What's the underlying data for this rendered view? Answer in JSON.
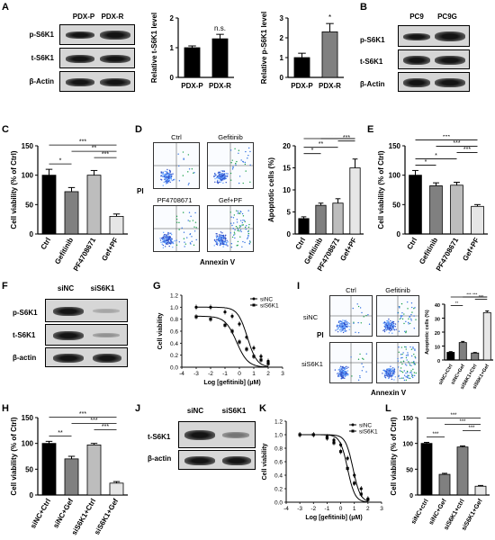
{
  "panel_labels": {
    "A": "A",
    "B": "B",
    "C": "C",
    "D": "D",
    "E": "E",
    "F": "F",
    "G": "G",
    "H": "H",
    "I": "I",
    "J": "J",
    "K": "K",
    "L": "L"
  },
  "blot_A": {
    "columns": [
      "PDX-P",
      "PDX-R"
    ],
    "rows": [
      "p-S6K1",
      "t-S6K1",
      "β-Actin"
    ]
  },
  "blot_B": {
    "columns": [
      "PC9",
      "PC9G"
    ],
    "rows": [
      "p-S6K1",
      "t-S6K1",
      "β-Actin"
    ]
  },
  "blot_F": {
    "columns": [
      "siNC",
      "siS6K1"
    ],
    "rows": [
      "p-S6K1",
      "t-S6K1",
      "β-actin"
    ]
  },
  "blot_J": {
    "columns": [
      "siNC",
      "siS6K1"
    ],
    "rows": [
      "t-S6K1",
      "β-actin"
    ]
  },
  "flow_D": {
    "titles": [
      "Ctrl",
      "Gefitinib",
      "PF4708671",
      "Gef+PF"
    ],
    "xlabel": "Annexin V",
    "ylabel": "PI"
  },
  "flow_I": {
    "col_titles": [
      "Ctrl",
      "Gefitinib"
    ],
    "row_titles": [
      "siNC",
      "siS6K1"
    ],
    "xlabel": "Annexin V",
    "ylabel": "PI"
  },
  "chart_data": [
    {
      "id": "A1",
      "type": "bar",
      "categories": [
        "PDX-P",
        "PDX-R"
      ],
      "values": [
        1.0,
        1.3
      ],
      "errors": [
        0.06,
        0.15
      ],
      "colors": [
        "#000000",
        "#000000"
      ],
      "ylabel": "Relative t-S6K1 level",
      "ylim": [
        0,
        2
      ],
      "yticks": [
        "0",
        "1",
        "2"
      ],
      "sig": [
        {
          "from": 1,
          "to": 1,
          "label": "n.s."
        }
      ]
    },
    {
      "id": "A2",
      "type": "bar",
      "categories": [
        "PDX-P",
        "PDX-R"
      ],
      "values": [
        1.0,
        2.3
      ],
      "errors": [
        0.22,
        0.42
      ],
      "colors": [
        "#000000",
        "#808080"
      ],
      "ylabel": "Relative p-S6K1 level",
      "ylim": [
        0,
        3
      ],
      "yticks": [
        "0",
        "1",
        "2",
        "3"
      ],
      "sig": [
        {
          "from": 1,
          "to": 1,
          "label": "*"
        }
      ]
    },
    {
      "id": "C",
      "type": "bar",
      "categories": [
        "Ctrl",
        "Gefitinib",
        "PF4708671",
        "Gef+PF"
      ],
      "values": [
        100,
        72,
        100,
        30
      ],
      "errors": [
        10,
        7,
        8,
        4
      ],
      "colors": [
        "#000000",
        "#808080",
        "#bdbdbd",
        "#e6e6e6"
      ],
      "ylabel": "Cell viability (% of Ctrl)",
      "ylim": [
        0,
        150
      ],
      "yticks": [
        "0",
        "50",
        "100",
        "150"
      ],
      "sig": [
        {
          "from": 0,
          "to": 1,
          "label": "*"
        },
        {
          "from": 2,
          "to": 3,
          "label": "***"
        },
        {
          "from": 1,
          "to": 3,
          "label": "**"
        },
        {
          "from": 0,
          "to": 3,
          "label": "***"
        }
      ]
    },
    {
      "id": "D",
      "type": "bar",
      "categories": [
        "Ctrl",
        "Gefitinib",
        "PF4708671",
        "Gef+PF"
      ],
      "values": [
        3.5,
        6.5,
        7.0,
        15.0
      ],
      "errors": [
        0.4,
        0.5,
        1.0,
        2.0
      ],
      "colors": [
        "#000000",
        "#808080",
        "#bdbdbd",
        "#e6e6e6"
      ],
      "ylabel": "Apoptotic cells (%)",
      "ylim": [
        0,
        20
      ],
      "yticks": [
        "0",
        "5",
        "10",
        "15",
        "20"
      ],
      "sig": [
        {
          "from": 0,
          "to": 1,
          "label": "*"
        },
        {
          "from": 0,
          "to": 2,
          "label": "**"
        },
        {
          "from": 2,
          "to": 3,
          "label": "***"
        },
        {
          "from": 1,
          "to": 3,
          "label": "***"
        },
        {
          "from": 0,
          "to": 3,
          "label": "***"
        }
      ]
    },
    {
      "id": "E",
      "type": "bar",
      "categories": [
        "Ctrl",
        "Gefitinib",
        "PF4708671",
        "Gef+PF"
      ],
      "values": [
        100,
        82,
        83,
        47
      ],
      "errors": [
        8,
        5,
        5,
        3
      ],
      "colors": [
        "#000000",
        "#808080",
        "#bdbdbd",
        "#e6e6e6"
      ],
      "ylabel": "Cell viability (% of Ctrl)",
      "ylim": [
        0,
        150
      ],
      "yticks": [
        "0",
        "50",
        "100",
        "150"
      ],
      "sig": [
        {
          "from": 0,
          "to": 1,
          "label": "*"
        },
        {
          "from": 0,
          "to": 2,
          "label": "*"
        },
        {
          "from": 2,
          "to": 3,
          "label": "***"
        },
        {
          "from": 1,
          "to": 3,
          "label": "***"
        },
        {
          "from": 0,
          "to": 3,
          "label": "***"
        }
      ]
    },
    {
      "id": "G",
      "type": "line",
      "xlabel": "Log [gefitinib] (μM)",
      "ylabel": "Cell viability",
      "xlim": [
        -4,
        3
      ],
      "ylim": [
        0,
        1.2
      ],
      "xticks": [
        "-4",
        "-3",
        "-2",
        "-1",
        "0",
        "1",
        "2",
        "3"
      ],
      "yticks": [
        "0.0",
        "0.2",
        "0.4",
        "0.6",
        "0.8",
        "1.0",
        "1.2"
      ],
      "legend": [
        "siNC",
        "siS6K1"
      ],
      "series": [
        {
          "name": "siNC",
          "ec50": 0.55,
          "top": 1.0,
          "bottom": 0.0,
          "hill": 1.3,
          "points": [
            [
              -3,
              1.0
            ],
            [
              -2,
              1.0
            ],
            [
              -1,
              0.92
            ],
            [
              -0.5,
              0.85
            ],
            [
              0,
              0.72
            ],
            [
              0.5,
              0.5
            ],
            [
              1,
              0.32
            ],
            [
              1.5,
              0.18
            ],
            [
              2,
              0.1
            ]
          ]
        },
        {
          "name": "siS6K1",
          "ec50": -0.2,
          "top": 0.85,
          "bottom": 0.0,
          "hill": 1.1,
          "points": [
            [
              -3,
              0.84
            ],
            [
              -2,
              0.8
            ],
            [
              -1,
              0.7
            ],
            [
              -0.5,
              0.6
            ],
            [
              0,
              0.42
            ],
            [
              0.5,
              0.3
            ],
            [
              1,
              0.18
            ],
            [
              1.5,
              0.12
            ],
            [
              2,
              0.06
            ]
          ]
        }
      ]
    },
    {
      "id": "I",
      "type": "bar",
      "categories": [
        "siNC+Ctrl",
        "siNC+Gef",
        "siS6K1+Ctrl",
        "siS6K1+Gef"
      ],
      "values": [
        5.5,
        12.5,
        5.0,
        34
      ],
      "errors": [
        0.5,
        0.8,
        0.4,
        1.2
      ],
      "colors": [
        "#000000",
        "#808080",
        "#808080",
        "#e6e6e6"
      ],
      "ylabel": "Apoptotic cells (%)",
      "ylim": [
        0,
        40
      ],
      "yticks": [
        "0",
        "10",
        "20",
        "30",
        "40"
      ],
      "sig": [
        {
          "from": 0,
          "to": 1,
          "label": "**"
        },
        {
          "from": 2,
          "to": 3,
          "label": "***"
        },
        {
          "from": 1,
          "to": 3,
          "label": "***"
        },
        {
          "from": 0,
          "to": 3,
          "label": "***"
        }
      ]
    },
    {
      "id": "H",
      "type": "bar",
      "categories": [
        "siNC+Ctrl",
        "siNC+Gef",
        "siS6K1+Ctrl",
        "siS6K1+Gef"
      ],
      "values": [
        100,
        70,
        97,
        23
      ],
      "errors": [
        4,
        5,
        3,
        3
      ],
      "colors": [
        "#000000",
        "#808080",
        "#bdbdbd",
        "#e6e6e6"
      ],
      "ylabel": "Cell viability (% of Ctrl)",
      "ylim": [
        0,
        150
      ],
      "yticks": [
        "0",
        "50",
        "100",
        "150"
      ],
      "sig": [
        {
          "from": 0,
          "to": 1,
          "label": "**"
        },
        {
          "from": 2,
          "to": 3,
          "label": "***"
        },
        {
          "from": 1,
          "to": 3,
          "label": "***"
        },
        {
          "from": 0,
          "to": 3,
          "label": "***"
        }
      ]
    },
    {
      "id": "K",
      "type": "line",
      "xlabel": "Log [gefitinib] (μM)",
      "ylabel": "Cell viability",
      "xlim": [
        -4,
        3
      ],
      "ylim": [
        0,
        1.2
      ],
      "xticks": [
        "-4",
        "-3",
        "-2",
        "-1",
        "0",
        "1",
        "2",
        "3"
      ],
      "yticks": [
        "0.0",
        "0.2",
        "0.4",
        "0.6",
        "0.8",
        "1.0",
        "1.2"
      ],
      "legend": [
        "siNC",
        "siS6K1"
      ],
      "series": [
        {
          "name": "siNC",
          "ec50": 0.9,
          "top": 1.0,
          "bottom": 0.0,
          "hill": 1.6,
          "points": [
            [
              -3,
              1.0
            ],
            [
              -2,
              1.0
            ],
            [
              -1,
              0.97
            ],
            [
              -0.5,
              0.92
            ],
            [
              0,
              0.85
            ],
            [
              0.5,
              0.65
            ],
            [
              1,
              0.4
            ],
            [
              1.5,
              0.2
            ],
            [
              2,
              0.05
            ]
          ]
        },
        {
          "name": "siS6K1",
          "ec50": 0.5,
          "top": 1.0,
          "bottom": 0.0,
          "hill": 1.6,
          "points": [
            [
              -3,
              1.0
            ],
            [
              -2,
              1.0
            ],
            [
              -1,
              0.95
            ],
            [
              -0.5,
              0.88
            ],
            [
              0,
              0.75
            ],
            [
              0.5,
              0.5
            ],
            [
              1,
              0.28
            ],
            [
              1.5,
              0.12
            ],
            [
              2,
              0.04
            ]
          ]
        }
      ]
    },
    {
      "id": "L",
      "type": "bar",
      "categories": [
        "siNC+ctrl",
        "siNC+Gef",
        "siS6K1+ctrl",
        "siS6K1+Gef"
      ],
      "values": [
        100,
        40,
        93,
        17
      ],
      "errors": [
        2,
        2,
        2,
        1.5
      ],
      "colors": [
        "#000000",
        "#808080",
        "#808080",
        "#e6e6e6"
      ],
      "ylabel": "Cell viability (% of Ctrl)",
      "ylim": [
        0,
        150
      ],
      "yticks": [
        "0",
        "50",
        "100",
        "150"
      ],
      "sig": [
        {
          "from": 0,
          "to": 1,
          "label": "***"
        },
        {
          "from": 2,
          "to": 3,
          "label": "***"
        },
        {
          "from": 1,
          "to": 3,
          "label": "***"
        },
        {
          "from": 0,
          "to": 3,
          "label": "***"
        }
      ]
    }
  ]
}
